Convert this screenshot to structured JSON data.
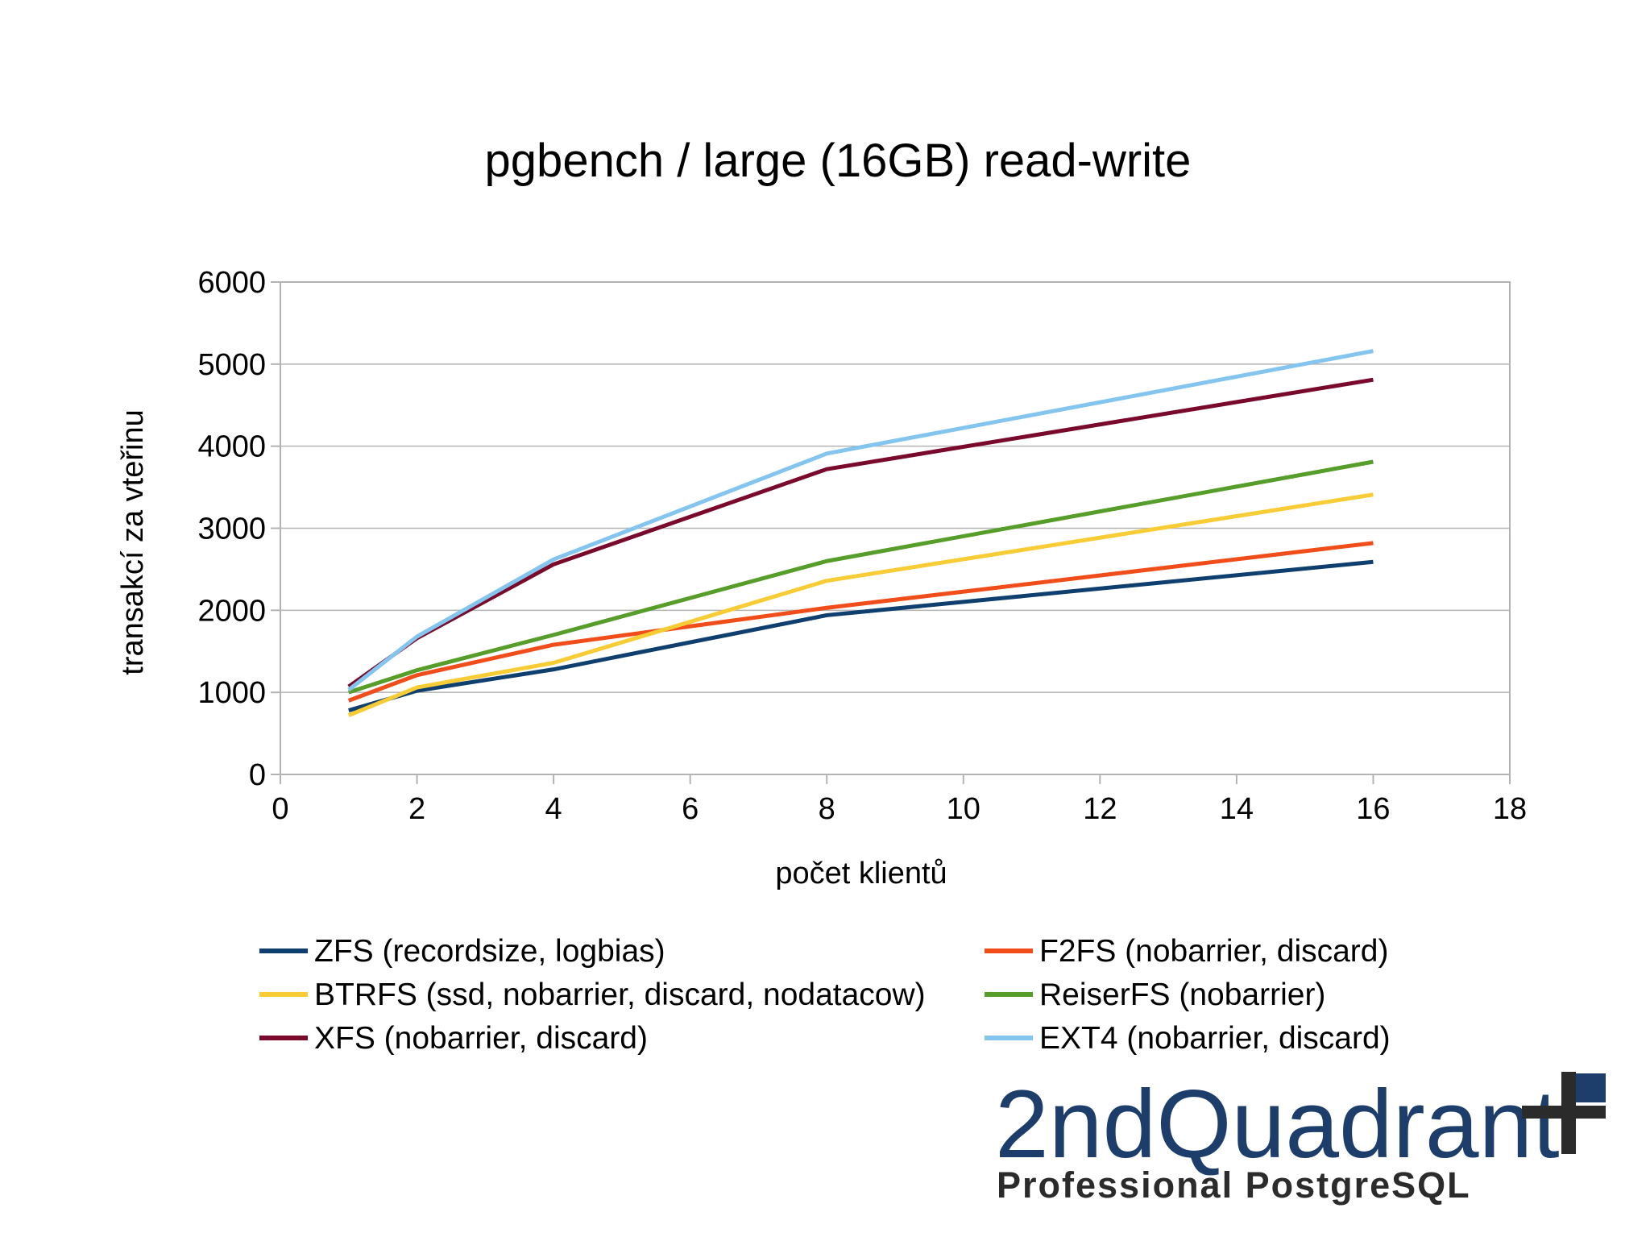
{
  "chart_data": {
    "type": "line",
    "title": "pgbench / large (16GB) read-write",
    "xlabel": "počet klientů",
    "ylabel": "transakcí za vteřinu",
    "xlim": [
      0,
      18
    ],
    "ylim": [
      0,
      6000
    ],
    "x_ticks": [
      "0",
      "2",
      "4",
      "6",
      "8",
      "10",
      "12",
      "14",
      "16",
      "18"
    ],
    "y_ticks": [
      "0",
      "1000",
      "2000",
      "3000",
      "4000",
      "5000",
      "6000"
    ],
    "grid": "horizontal",
    "legend_position": "bottom",
    "x": [
      1,
      2,
      4,
      8,
      16
    ],
    "series": [
      {
        "name": "ZFS (recordsize, logbias)",
        "color": "#0e3f6e",
        "values": [
          780,
          1020,
          1280,
          1940,
          2590
        ]
      },
      {
        "name": "F2FS (nobarrier, discard)",
        "color": "#f04d1b",
        "values": [
          900,
          1210,
          1580,
          2030,
          2820
        ]
      },
      {
        "name": "BTRFS (ssd, nobarrier, discard, nodatacow)",
        "color": "#f7cc35",
        "values": [
          720,
          1060,
          1360,
          2360,
          3410
        ]
      },
      {
        "name": "ReiserFS (nobarrier)",
        "color": "#569d2a",
        "values": [
          1000,
          1270,
          1700,
          2600,
          3810
        ]
      },
      {
        "name": "XFS (nobarrier, discard)",
        "color": "#7a0a2c",
        "values": [
          1070,
          1660,
          2560,
          3720,
          4810
        ]
      },
      {
        "name": "EXT4 (nobarrier, discard)",
        "color": "#84c5ef",
        "values": [
          1030,
          1680,
          2620,
          3910,
          5160
        ]
      }
    ]
  },
  "logo": {
    "name": "2ndQuadrant",
    "tagline": "Professional PostgreSQL",
    "colors": {
      "primary": "#1d3e6b",
      "cross": "#2b2b2b",
      "square": "#1d3e6b"
    }
  }
}
